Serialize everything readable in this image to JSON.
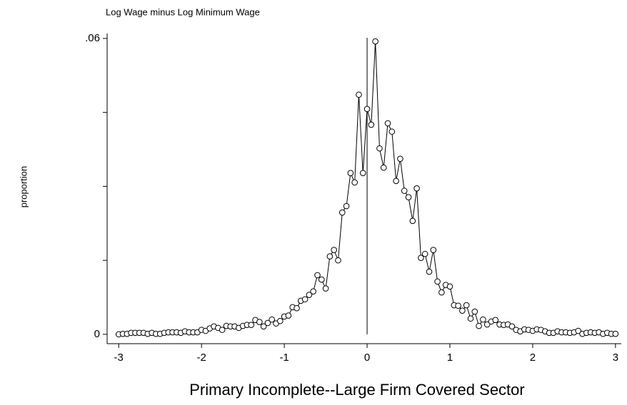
{
  "chart_data": {
    "type": "line",
    "title": "Log Wage minus Log Minimum Wage",
    "y_label": "proportion",
    "x_label": "Primary Incomplete--Large Firm Covered Sector",
    "x": [
      -3,
      -2.95,
      -2.9,
      -2.85,
      -2.8,
      -2.75,
      -2.7,
      -2.65,
      -2.6,
      -2.55,
      -2.5,
      -2.45,
      -2.4,
      -2.35,
      -2.3,
      -2.25,
      -2.2,
      -2.15,
      -2.1,
      -2.05,
      -2,
      -1.95,
      -1.9,
      -1.85,
      -1.8,
      -1.75,
      -1.7,
      -1.65,
      -1.6,
      -1.55,
      -1.5,
      -1.45,
      -1.4,
      -1.35,
      -1.3,
      -1.25,
      -1.2,
      -1.15,
      -1.1,
      -1.05,
      -1,
      -0.95,
      -0.9,
      -0.85,
      -0.8,
      -0.75,
      -0.7,
      -0.65,
      -0.6,
      -0.55,
      -0.5,
      -0.45,
      -0.4,
      -0.35,
      -0.3,
      -0.25,
      -0.2,
      -0.15,
      -0.1,
      -0.05,
      0,
      0.05,
      0.1,
      0.15,
      0.2,
      0.25,
      0.3,
      0.35,
      0.4,
      0.45,
      0.5,
      0.55,
      0.6,
      0.65,
      0.7,
      0.75,
      0.8,
      0.85,
      0.9,
      0.95,
      1,
      1.05,
      1.1,
      1.15,
      1.2,
      1.25,
      1.3,
      1.35,
      1.4,
      1.45,
      1.5,
      1.55,
      1.6,
      1.65,
      1.7,
      1.75,
      1.8,
      1.85,
      1.9,
      1.95,
      2,
      2.05,
      2.1,
      2.15,
      2.2,
      2.25,
      2.3,
      2.35,
      2.4,
      2.45,
      2.5,
      2.55,
      2.6,
      2.65,
      2.7,
      2.75,
      2.8,
      2.85,
      2.9,
      2.95,
      3
    ],
    "values": [
      0,
      0.0001,
      0.0001,
      0.0003,
      0.0003,
      0.0003,
      0.0003,
      0.0001,
      0.0003,
      0.0001,
      0.0001,
      0.0003,
      0.0004,
      0.0004,
      0.0004,
      0.0003,
      0.0006,
      0.0004,
      0.0004,
      0.0004,
      0.0009,
      0.0007,
      0.0012,
      0.0016,
      0.0013,
      0.0009,
      0.0017,
      0.0016,
      0.0016,
      0.0013,
      0.0017,
      0.0019,
      0.0019,
      0.0029,
      0.0025,
      0.0016,
      0.0023,
      0.003,
      0.0022,
      0.0027,
      0.0036,
      0.0038,
      0.0055,
      0.0053,
      0.0068,
      0.0071,
      0.008,
      0.0087,
      0.012,
      0.0111,
      0.0093,
      0.0158,
      0.0171,
      0.015,
      0.0247,
      0.026,
      0.0327,
      0.0308,
      0.0486,
      0.0327,
      0.0457,
      0.0425,
      0.0594,
      0.0377,
      0.0338,
      0.0428,
      0.0411,
      0.0311,
      0.0356,
      0.0291,
      0.0278,
      0.023,
      0.0296,
      0.0155,
      0.0163,
      0.0127,
      0.0171,
      0.0107,
      0.0085,
      0.01,
      0.0097,
      0.0059,
      0.0058,
      0.0048,
      0.0059,
      0.0032,
      0.0046,
      0.0017,
      0.003,
      0.002,
      0.0026,
      0.0029,
      0.002,
      0.0019,
      0.002,
      0.0016,
      0.0009,
      0.0006,
      0.001,
      0.0009,
      0.0007,
      0.001,
      0.0009,
      0.0006,
      0.0003,
      0.0003,
      0.0006,
      0.0004,
      0.0004,
      0.0003,
      0.0004,
      0.0007,
      0.0001,
      0.0003,
      0.0004,
      0.0003,
      0.0004,
      0.0001,
      0.0003,
      0.0001,
      0.0001
    ],
    "color": "#000000",
    "marker": "circle",
    "xline": 0,
    "xlim": [
      -3.14,
      3.07
    ],
    "ylim": [
      -0.0019,
      0.061
    ],
    "xticks": [
      -3,
      -2,
      -1,
      0,
      1,
      2,
      3
    ],
    "yticks": [
      {
        "value": 0.06,
        "label": ".06"
      },
      0
    ],
    "yminor_ticks": [
      0.015,
      0.03,
      0.045
    ]
  }
}
